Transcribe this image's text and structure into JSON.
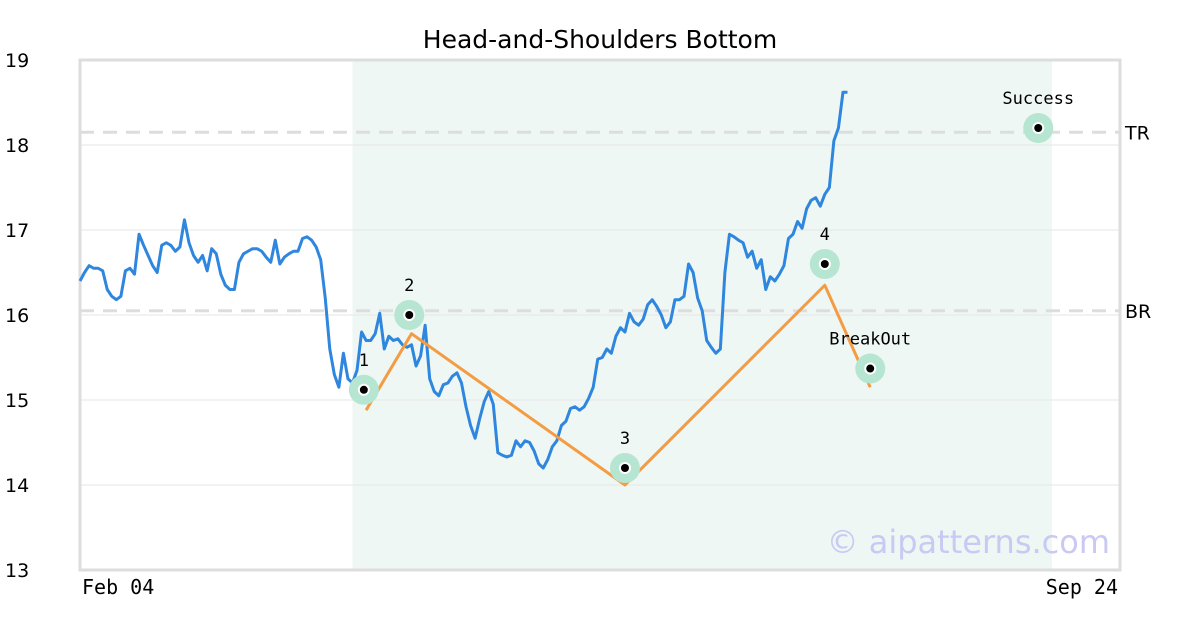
{
  "chart_data": {
    "type": "line",
    "title": "Head-and-Shoulders Bottom",
    "watermark": "© aipatterns.com",
    "ylim": [
      13,
      19
    ],
    "yticks": [
      "13",
      "14",
      "15",
      "16",
      "17",
      "18",
      "19"
    ],
    "x_range": [
      0,
      229
    ],
    "xtick_labels": [
      {
        "label": "Feb 04",
        "x": 0,
        "anchor": "start"
      },
      {
        "label": "Sep 24",
        "x": 229,
        "anchor": "end"
      }
    ],
    "grid": true,
    "pattern_region": [
      60,
      214
    ],
    "colors": {
      "price": "#2e86de",
      "pattern": "#f39c43",
      "region": "#eef7f3",
      "marker": "#b6e6d2",
      "reference": "#dddddd"
    },
    "reference_lines": [
      {
        "label": "TR",
        "y": 18.15
      },
      {
        "label": "BR",
        "y": 16.05
      }
    ],
    "price_series": [
      [
        0,
        16.4
      ],
      [
        1,
        16.5
      ],
      [
        2,
        16.58
      ],
      [
        3,
        16.55
      ],
      [
        4,
        16.55
      ],
      [
        5,
        16.52
      ],
      [
        6,
        16.3
      ],
      [
        7,
        16.22
      ],
      [
        8,
        16.18
      ],
      [
        9,
        16.22
      ],
      [
        10,
        16.52
      ],
      [
        11,
        16.55
      ],
      [
        12,
        16.48
      ],
      [
        13,
        16.95
      ],
      [
        14,
        16.82
      ],
      [
        15,
        16.7
      ],
      [
        16,
        16.58
      ],
      [
        17,
        16.5
      ],
      [
        18,
        16.82
      ],
      [
        19,
        16.85
      ],
      [
        20,
        16.82
      ],
      [
        21,
        16.75
      ],
      [
        22,
        16.8
      ],
      [
        23,
        17.12
      ],
      [
        24,
        16.85
      ],
      [
        25,
        16.7
      ],
      [
        26,
        16.62
      ],
      [
        27,
        16.7
      ],
      [
        28,
        16.52
      ],
      [
        29,
        16.78
      ],
      [
        30,
        16.72
      ],
      [
        31,
        16.48
      ],
      [
        32,
        16.35
      ],
      [
        33,
        16.3
      ],
      [
        34,
        16.3
      ],
      [
        35,
        16.62
      ],
      [
        36,
        16.72
      ],
      [
        37,
        16.75
      ],
      [
        38,
        16.78
      ],
      [
        39,
        16.78
      ],
      [
        40,
        16.75
      ],
      [
        41,
        16.68
      ],
      [
        42,
        16.62
      ],
      [
        43,
        16.88
      ],
      [
        44,
        16.6
      ],
      [
        45,
        16.68
      ],
      [
        46,
        16.72
      ],
      [
        47,
        16.75
      ],
      [
        48,
        16.75
      ],
      [
        49,
        16.9
      ],
      [
        50,
        16.92
      ],
      [
        51,
        16.88
      ],
      [
        52,
        16.8
      ],
      [
        53,
        16.65
      ],
      [
        54,
        16.2
      ],
      [
        55,
        15.6
      ],
      [
        56,
        15.3
      ],
      [
        57,
        15.15
      ],
      [
        58,
        15.55
      ],
      [
        59,
        15.25
      ],
      [
        60,
        15.2
      ],
      [
        61,
        15.35
      ],
      [
        62,
        15.8
      ],
      [
        63,
        15.7
      ],
      [
        64,
        15.7
      ],
      [
        65,
        15.78
      ],
      [
        66,
        16.02
      ],
      [
        67,
        15.6
      ],
      [
        68,
        15.75
      ],
      [
        69,
        15.7
      ],
      [
        70,
        15.72
      ],
      [
        71,
        15.65
      ],
      [
        72,
        15.62
      ],
      [
        73,
        15.65
      ],
      [
        74,
        15.4
      ],
      [
        75,
        15.52
      ],
      [
        76,
        15.88
      ],
      [
        77,
        15.25
      ],
      [
        78,
        15.1
      ],
      [
        79,
        15.05
      ],
      [
        80,
        15.18
      ],
      [
        81,
        15.2
      ],
      [
        82,
        15.28
      ],
      [
        83,
        15.32
      ],
      [
        84,
        15.2
      ],
      [
        85,
        14.92
      ],
      [
        86,
        14.7
      ],
      [
        87,
        14.55
      ],
      [
        88,
        14.78
      ],
      [
        89,
        14.98
      ],
      [
        90,
        15.1
      ],
      [
        91,
        14.95
      ],
      [
        92,
        14.38
      ],
      [
        93,
        14.35
      ],
      [
        94,
        14.33
      ],
      [
        95,
        14.35
      ],
      [
        96,
        14.52
      ],
      [
        97,
        14.45
      ],
      [
        98,
        14.52
      ],
      [
        99,
        14.5
      ],
      [
        100,
        14.4
      ],
      [
        101,
        14.25
      ],
      [
        102,
        14.2
      ],
      [
        103,
        14.3
      ],
      [
        104,
        14.45
      ],
      [
        105,
        14.52
      ],
      [
        106,
        14.7
      ],
      [
        107,
        14.75
      ],
      [
        108,
        14.9
      ],
      [
        109,
        14.92
      ],
      [
        110,
        14.88
      ],
      [
        111,
        14.92
      ],
      [
        112,
        15.02
      ],
      [
        113,
        15.15
      ],
      [
        114,
        15.48
      ],
      [
        115,
        15.5
      ],
      [
        116,
        15.6
      ],
      [
        117,
        15.55
      ],
      [
        118,
        15.75
      ],
      [
        119,
        15.85
      ],
      [
        120,
        15.8
      ],
      [
        121,
        16.02
      ],
      [
        122,
        15.92
      ],
      [
        123,
        15.88
      ],
      [
        124,
        15.95
      ],
      [
        125,
        16.12
      ],
      [
        126,
        16.18
      ],
      [
        127,
        16.1
      ],
      [
        128,
        16.0
      ],
      [
        129,
        15.85
      ],
      [
        130,
        15.92
      ],
      [
        131,
        16.18
      ],
      [
        132,
        16.18
      ],
      [
        133,
        16.22
      ],
      [
        134,
        16.6
      ],
      [
        135,
        16.5
      ],
      [
        136,
        16.2
      ],
      [
        137,
        16.05
      ],
      [
        138,
        15.7
      ],
      [
        139,
        15.62
      ],
      [
        140,
        15.55
      ],
      [
        141,
        15.6
      ],
      [
        142,
        16.5
      ],
      [
        143,
        16.95
      ],
      [
        144,
        16.92
      ],
      [
        145,
        16.88
      ],
      [
        146,
        16.85
      ],
      [
        147,
        16.68
      ],
      [
        148,
        16.75
      ],
      [
        149,
        16.55
      ],
      [
        150,
        16.65
      ],
      [
        151,
        16.3
      ],
      [
        152,
        16.45
      ],
      [
        153,
        16.4
      ],
      [
        154,
        16.48
      ],
      [
        155,
        16.58
      ],
      [
        156,
        16.9
      ],
      [
        157,
        16.95
      ],
      [
        158,
        17.1
      ],
      [
        159,
        17.02
      ],
      [
        160,
        17.25
      ],
      [
        161,
        17.35
      ],
      [
        162,
        17.38
      ],
      [
        163,
        17.28
      ],
      [
        164,
        17.42
      ],
      [
        165,
        17.5
      ],
      [
        166,
        18.05
      ],
      [
        167,
        18.2
      ],
      [
        168,
        18.62
      ],
      [
        169,
        18.62
      ]
    ],
    "pattern_path": [
      [
        63,
        14.88
      ],
      [
        73,
        15.78
      ],
      [
        120,
        14.0
      ],
      [
        164,
        16.35
      ],
      [
        174,
        15.15
      ]
    ],
    "markers": [
      {
        "label": "1",
        "x": 62.5,
        "y": 15.12,
        "label_pos": "above"
      },
      {
        "label": "2",
        "x": 72.5,
        "y": 16.0,
        "label_pos": "above"
      },
      {
        "label": "3",
        "x": 120,
        "y": 14.2,
        "label_pos": "above"
      },
      {
        "label": "4",
        "x": 164,
        "y": 16.6,
        "label_pos": "above"
      },
      {
        "label": "BreakOut",
        "x": 174,
        "y": 15.37,
        "label_pos": "above"
      },
      {
        "label": "Success",
        "x": 211,
        "y": 18.2,
        "label_pos": "above"
      }
    ]
  }
}
